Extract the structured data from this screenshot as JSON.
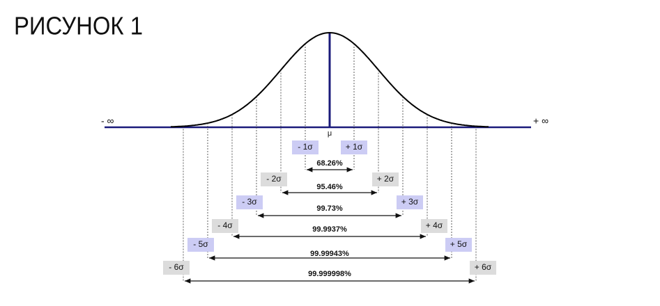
{
  "title": "РИСУНОК 1",
  "axis": {
    "left": "- ∞",
    "right": "+ ∞",
    "center": "μ"
  },
  "levels": [
    {
      "left": "- 1σ",
      "right": "+ 1σ",
      "percent": "68.26%"
    },
    {
      "left": "- 2σ",
      "right": "+ 2σ",
      "percent": "95.46%"
    },
    {
      "left": "- 3σ",
      "right": "+ 3σ",
      "percent": "99.73%"
    },
    {
      "left": "- 4σ",
      "right": "+ 4σ",
      "percent": "99.9937%"
    },
    {
      "left": "- 5σ",
      "right": "+ 5σ",
      "percent": "99.99943%"
    },
    {
      "left": "- 6σ",
      "right": "+ 6σ",
      "percent": "99.999998%"
    }
  ]
}
